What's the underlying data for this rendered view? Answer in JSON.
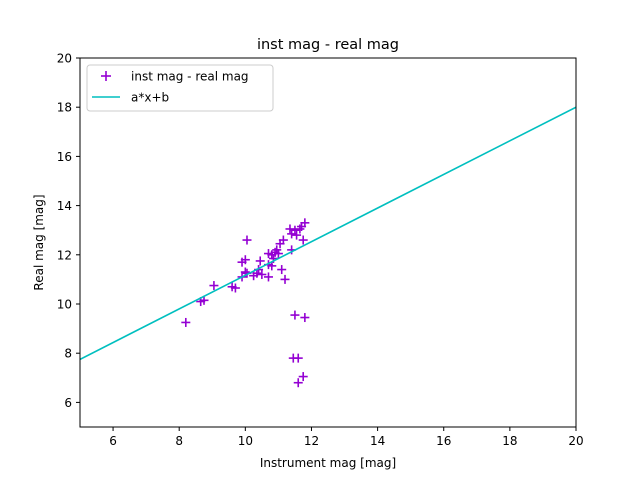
{
  "chart_data": {
    "type": "scatter",
    "title": "inst mag - real mag",
    "xlabel": "Instrument mag [mag]",
    "ylabel": "Real mag [mag]",
    "xlim": [
      5,
      20
    ],
    "ylim": [
      5,
      20
    ],
    "xticks": [
      6,
      8,
      10,
      12,
      14,
      16,
      18,
      20
    ],
    "yticks": [
      6,
      8,
      10,
      12,
      14,
      16,
      18,
      20
    ],
    "grid": false,
    "legend_position": "upper-left",
    "series": [
      {
        "name": "inst mag - real mag",
        "kind": "scatter",
        "marker": "+",
        "color": "#9400d3",
        "points": [
          [
            8.2,
            9.25
          ],
          [
            8.65,
            10.1
          ],
          [
            8.75,
            10.15
          ],
          [
            9.05,
            10.75
          ],
          [
            9.6,
            10.7
          ],
          [
            9.7,
            10.65
          ],
          [
            9.9,
            11.1
          ],
          [
            9.9,
            11.7
          ],
          [
            10.0,
            11.3
          ],
          [
            10.0,
            11.8
          ],
          [
            10.05,
            11.25
          ],
          [
            10.05,
            12.6
          ],
          [
            10.25,
            11.15
          ],
          [
            10.35,
            11.25
          ],
          [
            10.4,
            11.4
          ],
          [
            10.45,
            11.75
          ],
          [
            10.5,
            11.2
          ],
          [
            10.7,
            11.1
          ],
          [
            10.7,
            11.6
          ],
          [
            10.7,
            12.05
          ],
          [
            10.8,
            11.55
          ],
          [
            10.8,
            12.0
          ],
          [
            10.85,
            11.85
          ],
          [
            10.9,
            12.1
          ],
          [
            10.95,
            12.2
          ],
          [
            11.0,
            12.05
          ],
          [
            11.05,
            12.45
          ],
          [
            11.1,
            11.4
          ],
          [
            11.15,
            12.6
          ],
          [
            11.2,
            11.0
          ],
          [
            11.35,
            13.05
          ],
          [
            11.4,
            12.2
          ],
          [
            11.4,
            12.85
          ],
          [
            11.45,
            7.8
          ],
          [
            11.5,
            9.55
          ],
          [
            11.5,
            13.0
          ],
          [
            11.55,
            12.8
          ],
          [
            11.6,
            7.8
          ],
          [
            11.6,
            6.8
          ],
          [
            11.65,
            13.05
          ],
          [
            11.7,
            13.15
          ],
          [
            11.75,
            7.05
          ],
          [
            11.75,
            12.6
          ],
          [
            11.8,
            13.3
          ],
          [
            11.8,
            9.45
          ]
        ]
      },
      {
        "name": "a*x+b",
        "kind": "line",
        "color": "#00bfbf",
        "points": [
          [
            5,
            7.75
          ],
          [
            20,
            18.0
          ]
        ]
      }
    ]
  }
}
